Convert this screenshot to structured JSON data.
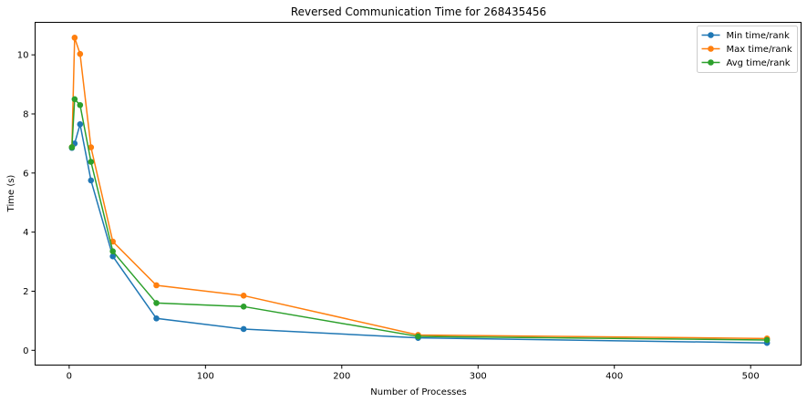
{
  "chart_data": {
    "type": "line",
    "title": "Reversed Communication Time for 268435456",
    "xlabel": "Number of Processes",
    "ylabel": "Time (s)",
    "xlim": [
      -25,
      537
    ],
    "ylim": [
      -0.5,
      11.1
    ],
    "xticks": [
      0,
      100,
      200,
      300,
      400,
      500
    ],
    "yticks": [
      0,
      2,
      4,
      6,
      8,
      10
    ],
    "grid": false,
    "legend": "top-right",
    "x": [
      2,
      4,
      8,
      16,
      32,
      64,
      128,
      256,
      512
    ],
    "series": [
      {
        "name": "Min time/rank",
        "color": "#1f77b4",
        "values": [
          6.85,
          7.0,
          7.65,
          5.75,
          3.18,
          1.08,
          0.72,
          0.42,
          0.25
        ]
      },
      {
        "name": "Max time/rank",
        "color": "#ff7f0e",
        "values": [
          6.88,
          10.58,
          10.03,
          6.87,
          3.68,
          2.2,
          1.85,
          0.52,
          0.4
        ]
      },
      {
        "name": "Avg time/rank",
        "color": "#2ca02c",
        "values": [
          6.87,
          8.5,
          8.3,
          6.38,
          3.35,
          1.6,
          1.48,
          0.47,
          0.35
        ]
      }
    ]
  }
}
